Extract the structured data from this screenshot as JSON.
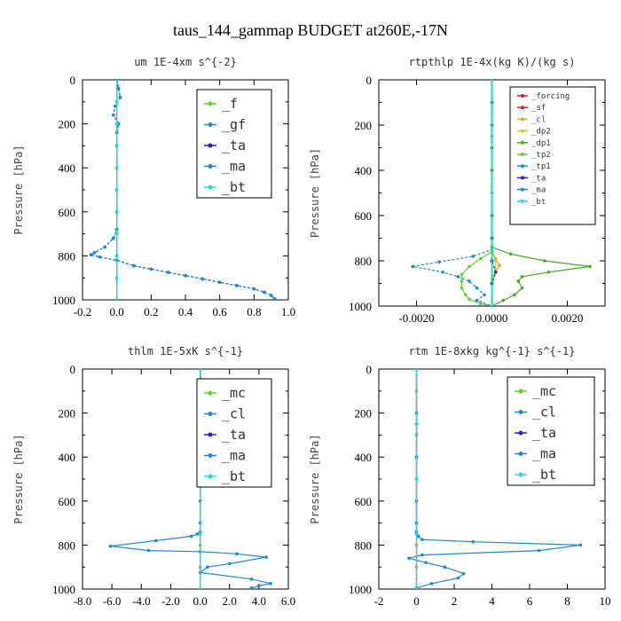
{
  "title": "taus_144_gammap  BUDGET at260E,-17N",
  "chart_data": [
    {
      "type": "line",
      "title": "um  1E-4xm s^{-2}",
      "ylabel": "Pressure [hPa]",
      "xlim": [
        -0.2,
        1.0
      ],
      "ylim": [
        0,
        1000
      ],
      "xticks": [
        "-0.2",
        "0.0",
        "0.2",
        "0.4",
        "0.6",
        "0.8",
        "1.0"
      ],
      "xtick_values": [
        -0.2,
        0.0,
        0.2,
        0.4,
        0.6,
        0.8,
        1.0
      ],
      "yticks": [
        "0",
        "200",
        "400",
        "600",
        "800",
        "1000"
      ],
      "legend_style": "big",
      "series": [
        {
          "name": "_f",
          "color": "#66cc33",
          "x": [
            0.0,
            0.0,
            0.0,
            0.0,
            0.0,
            0.0,
            0.0,
            0.0,
            0.0,
            0.0,
            0.0
          ],
          "y": [
            0,
            100,
            200,
            300,
            400,
            500,
            600,
            700,
            800,
            900,
            1000
          ]
        },
        {
          "name": "_gf",
          "color": "#2288cc",
          "x": [
            0.0,
            0.0,
            0.0,
            0.0,
            0.0,
            0.0,
            0.0,
            0.0,
            0.0,
            0.0,
            0.0
          ],
          "y": [
            0,
            100,
            200,
            300,
            400,
            500,
            600,
            700,
            800,
            900,
            1000
          ]
        },
        {
          "name": "_ta",
          "color": "#2222cc",
          "x": [
            0.0,
            0.01,
            0.02,
            -0.01,
            -0.02,
            0.01,
            0.0,
            0.0,
            0.0,
            0.0,
            0.0,
            0.0,
            -0.02,
            -0.07,
            -0.13,
            -0.15,
            -0.1,
            0.0,
            0.1,
            0.2,
            0.3,
            0.4,
            0.5,
            0.6,
            0.7,
            0.8,
            0.86,
            0.9,
            0.92
          ],
          "y": [
            0,
            40,
            80,
            120,
            160,
            200,
            240,
            300,
            400,
            500,
            600,
            680,
            720,
            760,
            785,
            795,
            805,
            820,
            845,
            860,
            875,
            890,
            905,
            920,
            935,
            950,
            965,
            980,
            995
          ]
        },
        {
          "name": "_ma",
          "color": "#2288cc",
          "x": [
            0.0,
            0.01,
            0.02,
            -0.01,
            -0.02,
            0.01,
            0.0,
            0.0,
            0.0,
            0.0,
            0.0,
            0.0,
            -0.02,
            -0.07,
            -0.13,
            -0.15,
            -0.1,
            0.0,
            0.1,
            0.2,
            0.3,
            0.4,
            0.5,
            0.6,
            0.7,
            0.8,
            0.86,
            0.9,
            0.92
          ],
          "y": [
            0,
            40,
            80,
            120,
            160,
            200,
            240,
            300,
            400,
            500,
            600,
            680,
            720,
            760,
            785,
            795,
            805,
            820,
            845,
            860,
            875,
            890,
            905,
            920,
            935,
            950,
            965,
            980,
            995
          ]
        },
        {
          "name": "_bt",
          "color": "#22ddcc",
          "x": [
            0.0,
            0.0,
            0.0,
            0.0,
            0.0,
            0.0,
            0.0,
            0.0,
            0.0,
            0.0,
            0.0
          ],
          "y": [
            0,
            100,
            200,
            300,
            400,
            500,
            600,
            700,
            800,
            900,
            1000
          ]
        }
      ]
    },
    {
      "type": "line",
      "title": "rtpthlp  1E-4x(kg K)/(kg s)",
      "ylabel": "Pressure [hPa]",
      "xlim": [
        -0.003,
        0.003
      ],
      "ylim": [
        0,
        1000
      ],
      "xticks": [
        "-0.0020",
        "0.0000",
        "0.0020"
      ],
      "xtick_values": [
        -0.002,
        0.0,
        0.002
      ],
      "yticks": [
        "0",
        "200",
        "400",
        "600",
        "800",
        "1000"
      ],
      "legend_style": "small",
      "series": [
        {
          "name": "_forcing",
          "color": "#cc2222",
          "x": [
            0,
            0,
            0,
            0,
            0,
            0,
            0,
            0,
            0,
            0,
            0
          ],
          "y": [
            0,
            100,
            200,
            300,
            400,
            500,
            600,
            700,
            800,
            900,
            1000
          ]
        },
        {
          "name": "_sf",
          "color": "#cc2222",
          "x": [
            0,
            0,
            0,
            0,
            0,
            0,
            0,
            0,
            0,
            0,
            0
          ],
          "y": [
            0,
            100,
            200,
            300,
            400,
            500,
            600,
            700,
            800,
            900,
            1000
          ]
        },
        {
          "name": "_cl",
          "color": "#ddaa22",
          "x": [
            0,
            0,
            0,
            0.0001,
            0.0002,
            0.0001,
            0.0,
            0.0
          ],
          "y": [
            0,
            700,
            760,
            790,
            820,
            850,
            900,
            1000
          ]
        },
        {
          "name": "_dp2",
          "color": "#cccc22",
          "x": [
            0,
            0,
            0,
            0.0001,
            0.0001,
            0.0,
            0.0
          ],
          "y": [
            0,
            700,
            760,
            800,
            840,
            880,
            1000
          ]
        },
        {
          "name": "_dp1",
          "color": "#44aa22",
          "x": [
            0,
            0,
            0.0005,
            0.0014,
            0.0026,
            0.0015,
            0.0008,
            0.0007,
            0.0008,
            0.0006,
            0.0003,
            0.0
          ],
          "y": [
            0,
            740,
            770,
            800,
            825,
            850,
            870,
            890,
            920,
            950,
            975,
            1000
          ]
        },
        {
          "name": "_tp2",
          "color": "#66cc33",
          "x": [
            0,
            0,
            -0.0003,
            -0.0006,
            -0.0008,
            -0.0008,
            -0.0008,
            -0.0007,
            -0.0006,
            -0.0003,
            0.0
          ],
          "y": [
            0,
            760,
            790,
            825,
            860,
            890,
            920,
            950,
            970,
            990,
            1000
          ]
        },
        {
          "name": "_tp1",
          "color": "#2288cc",
          "x": [
            0,
            0,
            -0.0005,
            -0.0014,
            -0.0021,
            -0.0013,
            -0.0009,
            -0.0006,
            -0.0004,
            -0.0002,
            -0.0004,
            0.0
          ],
          "y": [
            0,
            750,
            780,
            805,
            825,
            850,
            870,
            890,
            920,
            950,
            975,
            1000
          ]
        },
        {
          "name": "_ta",
          "color": "#2222cc",
          "x": [
            0,
            0,
            0,
            0.0001,
            0.0,
            0.0
          ],
          "y": [
            0,
            700,
            800,
            850,
            900,
            1000
          ]
        },
        {
          "name": "_ma",
          "color": "#2288cc",
          "x": [
            0,
            0,
            0,
            0,
            0
          ],
          "y": [
            0,
            250,
            500,
            750,
            1000
          ]
        },
        {
          "name": "_bt",
          "color": "#22ddcc",
          "x": [
            0,
            0,
            0,
            0,
            0
          ],
          "y": [
            0,
            250,
            500,
            750,
            1000
          ]
        }
      ]
    },
    {
      "type": "line",
      "title": "thlm  1E-5xK s^{-1}",
      "ylabel": "Pressure [hPa]",
      "xlim": [
        -8.0,
        6.0
      ],
      "ylim": [
        0,
        1000
      ],
      "xticks": [
        "-8.0",
        "-6.0",
        "-4.0",
        "-2.0",
        "0.0",
        "2.0",
        "4.0",
        "6.0"
      ],
      "xtick_values": [
        -8,
        -6,
        -4,
        -2,
        0,
        2,
        4,
        6
      ],
      "yticks": [
        "0",
        "200",
        "400",
        "600",
        "800",
        "1000"
      ],
      "legend_style": "big",
      "series": [
        {
          "name": "_mc",
          "color": "#66cc33",
          "x": [
            0,
            0,
            0,
            0,
            0,
            0,
            0,
            0,
            0,
            0,
            0
          ],
          "y": [
            0,
            100,
            200,
            300,
            400,
            500,
            600,
            700,
            800,
            900,
            1000
          ]
        },
        {
          "name": "_cl",
          "color": "#2288cc",
          "x": [
            0,
            0.1,
            0.15,
            0.1,
            0.0,
            0.1,
            0.0,
            0.0,
            0.0,
            0.0,
            -0.2,
            -0.6,
            -3.0,
            -6.1,
            -3.5,
            0.0,
            2.5,
            4.5,
            2.0,
            0.5,
            0.0,
            3.5,
            4.8,
            4.0,
            3.5
          ],
          "y": [
            0,
            100,
            150,
            200,
            300,
            400,
            500,
            600,
            700,
            740,
            750,
            760,
            780,
            805,
            825,
            830,
            840,
            855,
            885,
            900,
            925,
            955,
            975,
            985,
            995
          ]
        },
        {
          "name": "_ta",
          "color": "#2222cc",
          "x": [
            0,
            0,
            0,
            0,
            0
          ],
          "y": [
            0,
            250,
            500,
            750,
            1000
          ]
        },
        {
          "name": "_ma",
          "color": "#2288cc",
          "x": [
            0,
            0,
            0,
            0,
            0
          ],
          "y": [
            0,
            250,
            500,
            750,
            1000
          ]
        },
        {
          "name": "_bt",
          "color": "#22ddcc",
          "x": [
            0,
            0,
            0,
            0,
            0
          ],
          "y": [
            0,
            250,
            500,
            750,
            1000
          ]
        }
      ]
    },
    {
      "type": "line",
      "title": "rtm  1E-8xkg kg^{-1} s^{-1}",
      "ylabel": "Pressure [hPa]",
      "xlim": [
        -2,
        10
      ],
      "ylim": [
        0,
        1000
      ],
      "xticks": [
        "-2",
        "0",
        "2",
        "4",
        "6",
        "8",
        "10"
      ],
      "xtick_values": [
        -2,
        0,
        2,
        4,
        6,
        8,
        10
      ],
      "yticks": [
        "0",
        "200",
        "400",
        "600",
        "800",
        "1000"
      ],
      "legend_style": "big",
      "series": [
        {
          "name": "_mc",
          "color": "#66cc33",
          "x": [
            0,
            0,
            0,
            0,
            0,
            0,
            0,
            0,
            0,
            0,
            0
          ],
          "y": [
            0,
            100,
            200,
            300,
            400,
            500,
            600,
            700,
            800,
            900,
            1000
          ]
        },
        {
          "name": "_cl",
          "color": "#2288cc",
          "x": [
            0,
            0,
            0,
            0,
            0,
            0,
            0,
            0.1,
            0.3,
            3.0,
            8.7,
            6.5,
            0.3,
            -0.4,
            0.5,
            1.5,
            2.5,
            2.2,
            0.8,
            0.0
          ],
          "y": [
            0,
            200,
            400,
            600,
            700,
            740,
            750,
            760,
            775,
            785,
            800,
            825,
            845,
            860,
            880,
            900,
            930,
            950,
            975,
            995
          ]
        },
        {
          "name": "_ta",
          "color": "#2222cc",
          "x": [
            0,
            0,
            0,
            0,
            0
          ],
          "y": [
            0,
            250,
            500,
            750,
            1000
          ]
        },
        {
          "name": "_ma",
          "color": "#2288cc",
          "x": [
            0,
            0,
            0,
            0,
            0
          ],
          "y": [
            0,
            250,
            500,
            750,
            1000
          ]
        },
        {
          "name": "_bt",
          "color": "#22ddcc",
          "x": [
            0,
            0,
            0,
            0,
            0
          ],
          "y": [
            0,
            250,
            500,
            750,
            1000
          ]
        }
      ]
    }
  ]
}
